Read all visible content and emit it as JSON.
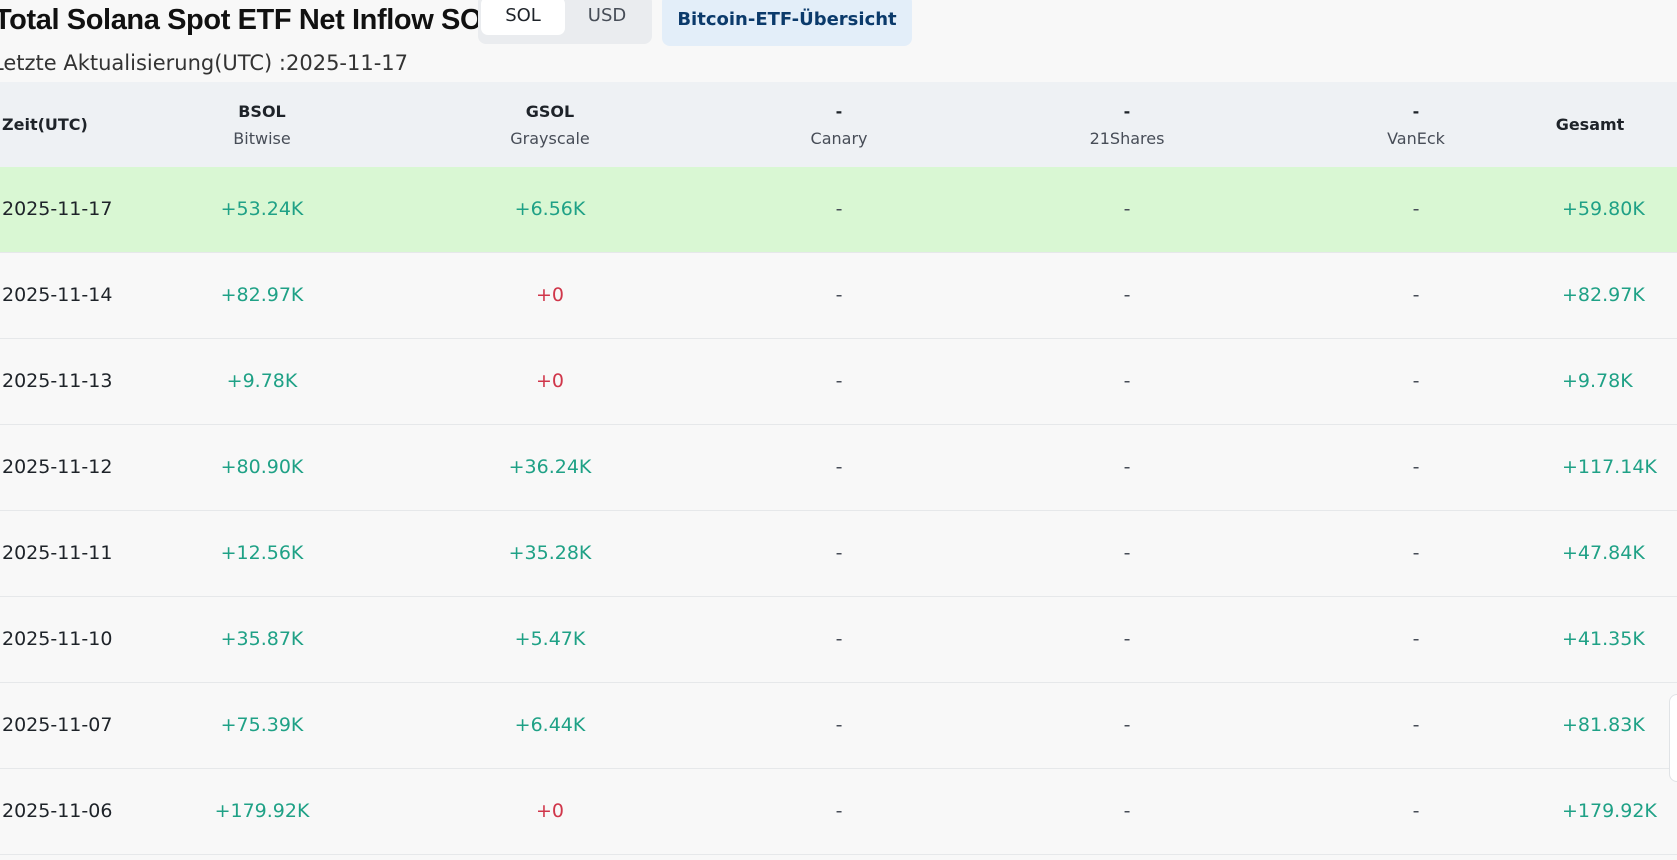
{
  "header": {
    "title": "Total Solana Spot ETF Net Inflow SOL",
    "units": [
      "SOL",
      "USD"
    ],
    "overview_button": "Bitcoin-ETF-Übersicht",
    "updated": "Letzte Aktualisierung(UTC) :2025-11-17"
  },
  "table": {
    "time_header": "Zeit(UTC)",
    "total_header": "Gesamt",
    "funds": [
      {
        "code": "BSOL",
        "issuer": "Bitwise"
      },
      {
        "code": "GSOL",
        "issuer": "Grayscale"
      },
      {
        "code": "-",
        "issuer": "Canary"
      },
      {
        "code": "-",
        "issuer": "21Shares"
      },
      {
        "code": "-",
        "issuer": "VanEck"
      }
    ],
    "rows": [
      {
        "date": "2025-11-17",
        "values": [
          "+53.24K",
          "+6.56K",
          "-",
          "-",
          "-"
        ],
        "total": "+59.80K"
      },
      {
        "date": "2025-11-14",
        "values": [
          "+82.97K",
          "+0",
          "-",
          "-",
          "-"
        ],
        "total": "+82.97K"
      },
      {
        "date": "2025-11-13",
        "values": [
          "+9.78K",
          "+0",
          "-",
          "-",
          "-"
        ],
        "total": "+9.78K"
      },
      {
        "date": "2025-11-12",
        "values": [
          "+80.90K",
          "+36.24K",
          "-",
          "-",
          "-"
        ],
        "total": "+117.14K"
      },
      {
        "date": "2025-11-11",
        "values": [
          "+12.56K",
          "+35.28K",
          "-",
          "-",
          "-"
        ],
        "total": "+47.84K"
      },
      {
        "date": "2025-11-10",
        "values": [
          "+35.87K",
          "+5.47K",
          "-",
          "-",
          "-"
        ],
        "total": "+41.35K"
      },
      {
        "date": "2025-11-07",
        "values": [
          "+75.39K",
          "+6.44K",
          "-",
          "-",
          "-"
        ],
        "total": "+81.83K"
      },
      {
        "date": "2025-11-06",
        "values": [
          "+179.92K",
          "+0",
          "-",
          "-",
          "-"
        ],
        "total": "+179.92K"
      }
    ]
  },
  "colors": {
    "positive": "#1fa186",
    "zero": "#d0364a",
    "highlight_row": "#d9f7d3",
    "header_bg": "#eef1f4"
  }
}
